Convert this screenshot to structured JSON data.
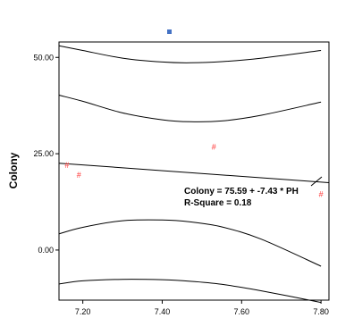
{
  "chart_data": {
    "type": "scatter",
    "xlabel": "",
    "ylabel": "Colony",
    "xlim": [
      7.14,
      7.82
    ],
    "ylim": [
      -13,
      54
    ],
    "x_ticks": [
      7.2,
      7.4,
      7.6,
      7.8
    ],
    "x_tick_labels": [
      "7.20",
      "7.40",
      "7.60",
      "7.80"
    ],
    "y_ticks": [
      0,
      25,
      50
    ],
    "y_tick_labels": [
      "0.00",
      "25.00",
      "50.00"
    ],
    "grid": false,
    "legend_marker_color": "#4472c4",
    "marker_color": "#ff3333",
    "line_color": "#000000",
    "points": [
      {
        "x": 7.16,
        "y": 22.0
      },
      {
        "x": 7.19,
        "y": 19.5
      },
      {
        "x": 7.53,
        "y": 26.8
      },
      {
        "x": 7.8,
        "y": 14.5
      }
    ],
    "regression": {
      "intercept": 75.59,
      "slope": -7.43
    },
    "bands": [
      {
        "name": "upper prediction",
        "x": [
          7.14,
          7.2,
          7.3,
          7.4,
          7.47,
          7.55,
          7.65,
          7.8
        ],
        "y": [
          53.0,
          51.8,
          49.8,
          48.8,
          48.6,
          48.9,
          49.8,
          51.8
        ]
      },
      {
        "name": "upper confidence",
        "x": [
          7.14,
          7.2,
          7.3,
          7.4,
          7.47,
          7.55,
          7.65,
          7.8
        ],
        "y": [
          40.2,
          38.6,
          35.6,
          33.8,
          33.3,
          33.5,
          35.0,
          38.4
        ]
      },
      {
        "name": "lower confidence",
        "x": [
          7.14,
          7.2,
          7.3,
          7.4,
          7.47,
          7.55,
          7.65,
          7.8
        ],
        "y": [
          4.2,
          5.9,
          7.6,
          7.8,
          7.3,
          6.0,
          2.8,
          -4.2
        ]
      },
      {
        "name": "lower prediction",
        "x": [
          7.14,
          7.2,
          7.3,
          7.4,
          7.47,
          7.55,
          7.65,
          7.8
        ],
        "y": [
          -8.8,
          -8.0,
          -7.6,
          -7.7,
          -8.1,
          -8.9,
          -10.6,
          -13.6
        ]
      }
    ],
    "annotations": [
      "Colony = 75.59 + -7.43 * PH",
      "R-Square = 0.18"
    ]
  }
}
